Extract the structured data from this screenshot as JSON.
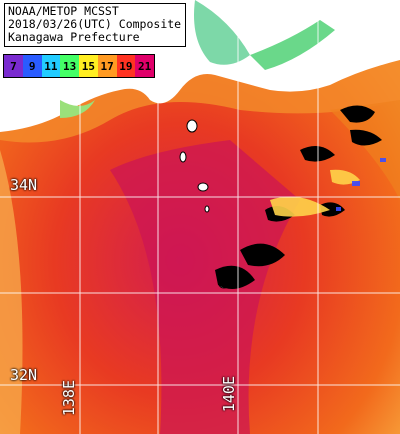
{
  "title_lines": [
    "NOAA/METOP MCSST",
    "2018/03/26(UTC) Composite",
    "Kanagawa Prefecture"
  ],
  "scale": {
    "values": [
      "7",
      "9",
      "11",
      "13",
      "15",
      "17",
      "19",
      "21"
    ],
    "colors": [
      "#7a2bd0",
      "#2a5cff",
      "#22ccff",
      "#44ff66",
      "#ffee22",
      "#ff9a22",
      "#ff3322",
      "#e0006a"
    ]
  },
  "grid": {
    "lat_labels": [
      "34N",
      "32N"
    ],
    "lon_labels": [
      "138E",
      "140E"
    ]
  },
  "colors": {
    "land": "#ffffff",
    "cloud": "#000000",
    "grid": "#ffffff"
  }
}
